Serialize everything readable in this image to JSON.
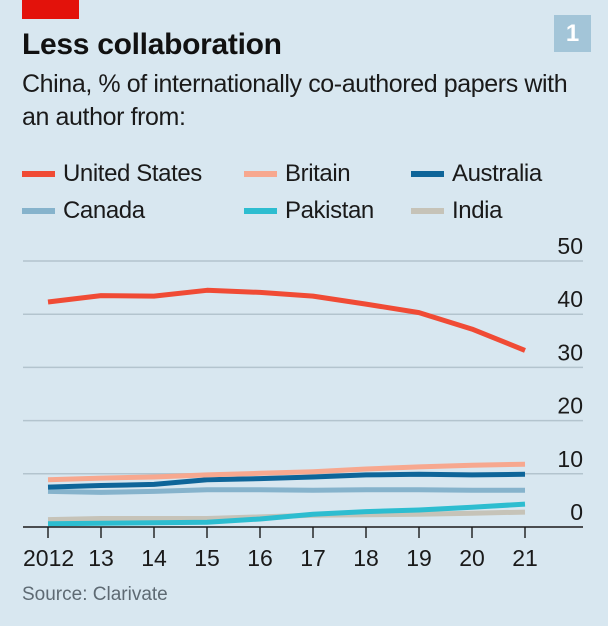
{
  "header": {
    "title": "Less collaboration",
    "subtitle": "China, % of internationally co-authored papers with an author from:",
    "chart_number": "1"
  },
  "footer": {
    "source": "Source: Clarivate"
  },
  "colors": {
    "background": "#d8e7f0",
    "brand_red": "#e3120b",
    "badge": "#a3c5d8",
    "grid": "#b3c4ce",
    "axis": "#1a1a1a"
  },
  "chart_data": {
    "type": "line",
    "title": "Less collaboration",
    "subtitle": "China, % of internationally co-authored papers with an author from:",
    "xlabel": "",
    "ylabel": "",
    "x": [
      2012,
      2013,
      2014,
      2015,
      2016,
      2017,
      2018,
      2019,
      2020,
      2021
    ],
    "x_tick_labels": [
      "2012",
      "13",
      "14",
      "15",
      "16",
      "17",
      "18",
      "19",
      "20",
      "21"
    ],
    "ylim": [
      0,
      50
    ],
    "y_ticks": [
      0,
      10,
      20,
      30,
      40,
      50
    ],
    "y_tick_labels": [
      "0",
      "10",
      "20",
      "30",
      "40",
      "50"
    ],
    "y_axis_side": "right",
    "grid": true,
    "legend_placement": "top",
    "series": [
      {
        "name": "United States",
        "color": "#f04b35",
        "values": [
          42.3,
          43.5,
          43.4,
          44.5,
          44.1,
          43.4,
          41.9,
          40.3,
          37.2,
          33.2
        ]
      },
      {
        "name": "Britain",
        "color": "#f7a88f",
        "values": [
          8.9,
          9.2,
          9.4,
          9.8,
          10.1,
          10.4,
          10.9,
          11.3,
          11.6,
          11.8
        ]
      },
      {
        "name": "Australia",
        "color": "#0e6599",
        "values": [
          7.5,
          7.8,
          8.0,
          8.9,
          9.1,
          9.4,
          9.8,
          9.9,
          9.8,
          9.9
        ]
      },
      {
        "name": "Canada",
        "color": "#86b3cc",
        "values": [
          6.7,
          6.5,
          6.7,
          7.0,
          7.0,
          6.9,
          7.0,
          7.0,
          6.9,
          6.9
        ]
      },
      {
        "name": "Pakistan",
        "color": "#2dbdd0",
        "values": [
          0.6,
          0.7,
          0.8,
          0.9,
          1.5,
          2.4,
          2.9,
          3.2,
          3.7,
          4.3
        ]
      },
      {
        "name": "India",
        "color": "#c6c3b8",
        "values": [
          1.4,
          1.6,
          1.6,
          1.6,
          1.9,
          2.2,
          2.3,
          2.4,
          2.6,
          2.8
        ]
      }
    ]
  }
}
